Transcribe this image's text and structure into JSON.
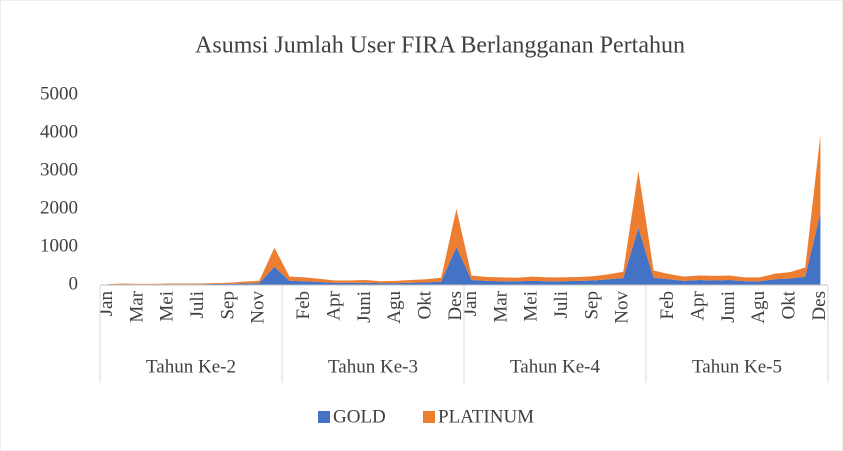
{
  "chart_data": {
    "type": "stacked_area",
    "title": "Asumsi Jumlah User FIRA Berlangganan  Pertahun",
    "categories": [
      "Jan",
      null,
      "Mar",
      null,
      "Mei",
      null,
      "Juli",
      null,
      "Sep",
      null,
      "Nov",
      null,
      null,
      "Feb",
      null,
      "Apr",
      null,
      "Juni",
      null,
      "Agu",
      null,
      "Okt",
      null,
      "Des",
      "Jan",
      null,
      "Mar",
      null,
      "Mei",
      null,
      "Juli",
      null,
      "Sep",
      null,
      "Nov",
      null,
      null,
      "Feb",
      null,
      "Apr",
      null,
      "Juni",
      null,
      "Agu",
      null,
      "Okt",
      null,
      "Des"
    ],
    "groups": [
      "Tahun Ke-2",
      "Tahun Ke-3",
      "Tahun Ke-4",
      "Tahun Ke-5"
    ],
    "series": [
      {
        "name": "GOLD",
        "color": "#4472c4",
        "values": [
          10,
          20,
          15,
          15,
          20,
          20,
          20,
          25,
          30,
          40,
          50,
          480,
          110,
          100,
          80,
          60,
          60,
          60,
          50,
          50,
          60,
          70,
          90,
          1000,
          130,
          110,
          100,
          100,
          110,
          100,
          100,
          110,
          120,
          150,
          180,
          1500,
          190,
          150,
          110,
          130,
          120,
          130,
          100,
          100,
          150,
          170,
          220,
          1900
        ]
      },
      {
        "name": "PLATINUM",
        "color": "#ed7d31",
        "values": [
          10,
          20,
          15,
          15,
          20,
          20,
          20,
          25,
          30,
          50,
          60,
          500,
          110,
          100,
          80,
          60,
          60,
          70,
          50,
          60,
          70,
          80,
          100,
          1000,
          120,
          100,
          100,
          90,
          110,
          100,
          100,
          100,
          110,
          130,
          170,
          1500,
          190,
          140,
          110,
          120,
          120,
          120,
          100,
          100,
          150,
          170,
          240,
          2050
        ]
      }
    ],
    "ylim": [
      0,
      5000
    ],
    "yticks": [
      0,
      1000,
      2000,
      3000,
      4000,
      5000
    ],
    "grid": false,
    "legend": "bottom"
  }
}
